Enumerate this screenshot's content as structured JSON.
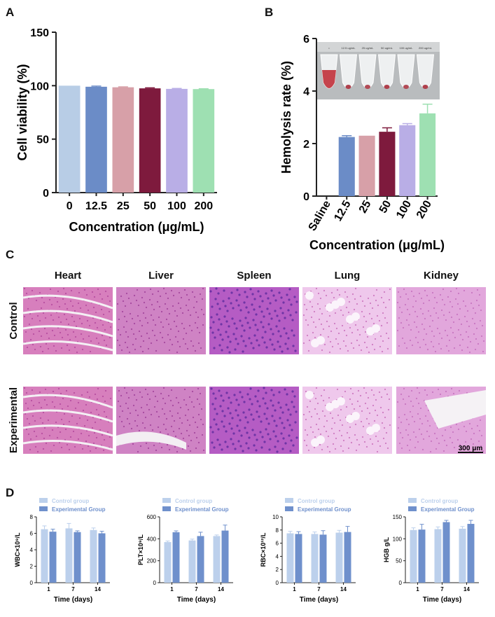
{
  "panels": {
    "a": "A",
    "b": "B",
    "c": "C",
    "d": "D"
  },
  "chart_data": [
    {
      "type": "bar",
      "categories": [
        "0",
        "12.5",
        "25",
        "50",
        "100",
        "200"
      ],
      "values": [
        100,
        99,
        98.5,
        97.5,
        97,
        96.8
      ],
      "errors": [
        0,
        0.6,
        0.4,
        0.5,
        0.4,
        0.3
      ],
      "colors": [
        "#b8cde6",
        "#6b8cc7",
        "#d7a0a8",
        "#7e1a3d",
        "#b9aee6",
        "#9ee0b2"
      ],
      "xlabel": "Concentration (μg/mL)",
      "ylabel": "Cell viability (%)",
      "ylim": [
        0,
        150
      ],
      "yticks": [
        "0",
        "50",
        "100",
        "150"
      ]
    },
    {
      "type": "bar",
      "categories": [
        "Saline",
        "12.5",
        "25",
        "50",
        "100",
        "200"
      ],
      "values": [
        0,
        2.25,
        2.3,
        2.45,
        2.7,
        3.15
      ],
      "errors": [
        0,
        0.05,
        0,
        0.15,
        0.06,
        0.35
      ],
      "colors": [
        "#ffffff",
        "#6b8cc7",
        "#d7a0a8",
        "#7e1a3d",
        "#b9aee6",
        "#9ee0b2"
      ],
      "xlabel": "Concentration (μg/mL)",
      "ylabel": "Hemolysis rate (%)",
      "ylim": [
        0,
        6
      ],
      "yticks": [
        "0",
        "2",
        "4",
        "6"
      ],
      "photo_labels": [
        "Saline",
        "12.5 ug/mL",
        "25 ug/mL",
        "50 ug/mL",
        "100 ug/mL",
        "200 ug/mL"
      ]
    },
    {
      "type": "bar",
      "categories": [
        "1",
        "7",
        "14"
      ],
      "series": [
        {
          "name": "Control group",
          "values": [
            6.5,
            6.6,
            6.4
          ],
          "errors": [
            0.4,
            0.6,
            0.25
          ]
        },
        {
          "name": "Experimental Group",
          "values": [
            6.2,
            6.15,
            6.0
          ],
          "errors": [
            0.3,
            0.15,
            0.25
          ]
        }
      ],
      "xlabel": "Time (days)",
      "ylabel": "WBC×10⁹/L",
      "ylim": [
        0,
        8
      ],
      "yticks": [
        "0",
        "2",
        "4",
        "6",
        "8"
      ]
    },
    {
      "type": "bar",
      "categories": [
        "1",
        "7",
        "14"
      ],
      "series": [
        {
          "name": "Control group",
          "values": [
            370,
            385,
            425
          ],
          "errors": [
            10,
            12,
            10
          ]
        },
        {
          "name": "Experimental Group",
          "values": [
            460,
            425,
            475
          ],
          "errors": [
            12,
            35,
            50
          ]
        }
      ],
      "xlabel": "Time (days)",
      "ylabel": "PLT×10⁹/L",
      "ylim": [
        0,
        600
      ],
      "yticks": [
        "0",
        "200",
        "400",
        "600"
      ]
    },
    {
      "type": "bar",
      "categories": [
        "1",
        "7",
        "14"
      ],
      "series": [
        {
          "name": "Control group",
          "values": [
            7.5,
            7.4,
            7.6
          ],
          "errors": [
            0.3,
            0.3,
            0.35
          ]
        },
        {
          "name": "Experimental Group",
          "values": [
            7.4,
            7.3,
            7.7
          ],
          "errors": [
            0.35,
            0.6,
            0.85
          ]
        }
      ],
      "xlabel": "Time (days)",
      "ylabel": "RBC×10¹²/L",
      "ylim": [
        0,
        10
      ],
      "yticks": [
        "0",
        "2",
        "4",
        "6",
        "8",
        "10"
      ]
    },
    {
      "type": "bar",
      "categories": [
        "1",
        "7",
        "14"
      ],
      "series": [
        {
          "name": "Control group",
          "values": [
            120,
            122,
            123
          ],
          "errors": [
            5,
            5,
            5
          ]
        },
        {
          "name": "Experimental Group",
          "values": [
            121,
            138,
            134
          ],
          "errors": [
            12,
            4,
            8
          ]
        }
      ],
      "xlabel": "Time (days)",
      "ylabel": "HGB g/L",
      "ylim": [
        0,
        150
      ],
      "yticks": [
        "0",
        "50",
        "100",
        "150"
      ]
    }
  ],
  "histology": {
    "columns": [
      "Heart",
      "Liver",
      "Spleen",
      "Lung",
      "Kidney"
    ],
    "rows": [
      "Control",
      "Experimental"
    ],
    "scale_bar": "300 μm"
  },
  "colors": {
    "control": "#bcd0ec",
    "experimental": "#6f90cc",
    "axis": "#222222"
  }
}
